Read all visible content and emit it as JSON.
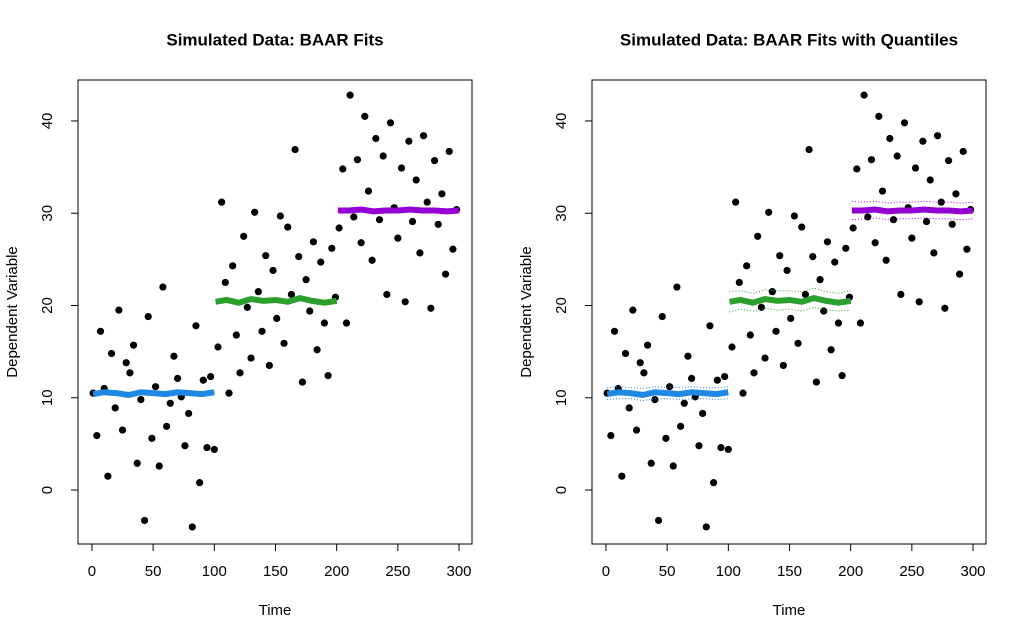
{
  "chart_data": [
    {
      "type": "scatter",
      "title": "Simulated Data: BAAR Fits",
      "x_label": "Time",
      "y_label": "Dependent Variable",
      "xlim": [
        -11.4,
        310.6
      ],
      "ylim": [
        -5.85,
        44.44
      ],
      "xticks": [
        0,
        50,
        100,
        150,
        200,
        250,
        300
      ],
      "yticks": [
        0,
        10,
        20,
        30,
        40
      ],
      "point_color": "#000000",
      "x": [
        1,
        4,
        7,
        10,
        13,
        16,
        19,
        22,
        25,
        28,
        31,
        34,
        37,
        40,
        43,
        46,
        49,
        52,
        55,
        58,
        61,
        64,
        67,
        70,
        73,
        76,
        79,
        82,
        85,
        88,
        91,
        94,
        97,
        100,
        103,
        106,
        109,
        112,
        115,
        118,
        121,
        124,
        127,
        130,
        133,
        136,
        139,
        142,
        145,
        148,
        151,
        154,
        157,
        160,
        163,
        166,
        169,
        172,
        175,
        178,
        181,
        184,
        187,
        190,
        193,
        196,
        199,
        202,
        205,
        208,
        211,
        214,
        217,
        220,
        223,
        226,
        229,
        232,
        235,
        238,
        241,
        244,
        247,
        250,
        253,
        256,
        259,
        262,
        265,
        268,
        271,
        274,
        277,
        280,
        283,
        286,
        289,
        292,
        295,
        298
      ],
      "values": [
        10.5,
        5.9,
        17.2,
        11,
        1.5,
        14.8,
        8.9,
        19.5,
        6.5,
        13.8,
        12.7,
        15.7,
        2.9,
        9.8,
        -3.3,
        18.8,
        5.6,
        11.2,
        2.6,
        22,
        6.9,
        9.4,
        14.5,
        12.1,
        10.1,
        4.8,
        8.3,
        -4,
        17.8,
        0.8,
        11.9,
        4.6,
        12.3,
        4.4,
        15.5,
        31.2,
        22.5,
        10.5,
        24.3,
        16.8,
        12.7,
        27.5,
        19.8,
        14.3,
        30.1,
        21.5,
        17.2,
        25.4,
        13.5,
        23.8,
        18.6,
        29.7,
        15.9,
        28.5,
        21.2,
        36.9,
        25.3,
        11.7,
        22.8,
        19.4,
        26.9,
        15.2,
        24.7,
        18.1,
        12.4,
        26.2,
        20.9,
        28.4,
        34.8,
        18.1,
        42.8,
        29.6,
        35.8,
        26.8,
        40.5,
        32.4,
        24.9,
        38.1,
        29.3,
        36.2,
        21.2,
        39.8,
        30.6,
        27.3,
        34.9,
        20.4,
        37.8,
        29.1,
        33.6,
        25.7,
        38.4,
        31.2,
        19.7,
        35.7,
        28.8,
        32.1,
        23.4,
        36.7,
        26.1,
        30.4
      ],
      "fits": [
        {
          "color": "#1e88e5",
          "x": [
            1,
            10,
            20,
            30,
            40,
            50,
            60,
            70,
            80,
            90,
            100
          ],
          "values": [
            10.4,
            10.6,
            10.5,
            10.3,
            10.6,
            10.5,
            10.4,
            10.6,
            10.5,
            10.4,
            10.6
          ]
        },
        {
          "color": "#2ca02c",
          "x": [
            101,
            110,
            120,
            130,
            140,
            150,
            160,
            170,
            180,
            190,
            200
          ],
          "values": [
            20.4,
            20.6,
            20.3,
            20.7,
            20.5,
            20.6,
            20.4,
            20.8,
            20.5,
            20.3,
            20.5
          ]
        },
        {
          "color": "#9400d3",
          "x": [
            201,
            210,
            220,
            230,
            240,
            250,
            260,
            270,
            280,
            290,
            300
          ],
          "values": [
            30.3,
            30.3,
            30.4,
            30.2,
            30.3,
            30.3,
            30.4,
            30.3,
            30.3,
            30.2,
            30.3
          ]
        }
      ]
    },
    {
      "type": "scatter",
      "title": "Simulated Data: BAAR Fits with Quantiles",
      "x_label": "Time",
      "y_label": "Dependent Variable",
      "xlim": [
        -11.4,
        310.6
      ],
      "ylim": [
        -5.85,
        44.44
      ],
      "xticks": [
        0,
        50,
        100,
        150,
        200,
        250,
        300
      ],
      "yticks": [
        0,
        10,
        20,
        30,
        40
      ],
      "point_color": "#000000",
      "x": [
        1,
        4,
        7,
        10,
        13,
        16,
        19,
        22,
        25,
        28,
        31,
        34,
        37,
        40,
        43,
        46,
        49,
        52,
        55,
        58,
        61,
        64,
        67,
        70,
        73,
        76,
        79,
        82,
        85,
        88,
        91,
        94,
        97,
        100,
        103,
        106,
        109,
        112,
        115,
        118,
        121,
        124,
        127,
        130,
        133,
        136,
        139,
        142,
        145,
        148,
        151,
        154,
        157,
        160,
        163,
        166,
        169,
        172,
        175,
        178,
        181,
        184,
        187,
        190,
        193,
        196,
        199,
        202,
        205,
        208,
        211,
        214,
        217,
        220,
        223,
        226,
        229,
        232,
        235,
        238,
        241,
        244,
        247,
        250,
        253,
        256,
        259,
        262,
        265,
        268,
        271,
        274,
        277,
        280,
        283,
        286,
        289,
        292,
        295,
        298
      ],
      "values": [
        10.5,
        5.9,
        17.2,
        11,
        1.5,
        14.8,
        8.9,
        19.5,
        6.5,
        13.8,
        12.7,
        15.7,
        2.9,
        9.8,
        -3.3,
        18.8,
        5.6,
        11.2,
        2.6,
        22,
        6.9,
        9.4,
        14.5,
        12.1,
        10.1,
        4.8,
        8.3,
        -4,
        17.8,
        0.8,
        11.9,
        4.6,
        12.3,
        4.4,
        15.5,
        31.2,
        22.5,
        10.5,
        24.3,
        16.8,
        12.7,
        27.5,
        19.8,
        14.3,
        30.1,
        21.5,
        17.2,
        25.4,
        13.5,
        23.8,
        18.6,
        29.7,
        15.9,
        28.5,
        21.2,
        36.9,
        25.3,
        11.7,
        22.8,
        19.4,
        26.9,
        15.2,
        24.7,
        18.1,
        12.4,
        26.2,
        20.9,
        28.4,
        34.8,
        18.1,
        42.8,
        29.6,
        35.8,
        26.8,
        40.5,
        32.4,
        24.9,
        38.1,
        29.3,
        36.2,
        21.2,
        39.8,
        30.6,
        27.3,
        34.9,
        20.4,
        37.8,
        29.1,
        33.6,
        25.7,
        38.4,
        31.2,
        19.7,
        35.7,
        28.8,
        32.1,
        23.4,
        36.7,
        26.1,
        30.4
      ],
      "fits": [
        {
          "color": "#1e88e5",
          "x": [
            1,
            10,
            20,
            30,
            40,
            50,
            60,
            70,
            80,
            90,
            100
          ],
          "values": [
            10.4,
            10.6,
            10.5,
            10.3,
            10.6,
            10.5,
            10.4,
            10.6,
            10.5,
            10.4,
            10.6
          ],
          "lower": [
            9.8,
            9.9,
            9.9,
            9.7,
            9.9,
            9.9,
            9.8,
            9.9,
            9.9,
            9.8,
            9.9
          ],
          "upper": [
            11.1,
            11.2,
            11.1,
            11,
            11.2,
            11.1,
            11.1,
            11.2,
            11.1,
            11.1,
            11.2
          ]
        },
        {
          "color": "#2ca02c",
          "x": [
            101,
            110,
            120,
            130,
            140,
            150,
            160,
            170,
            180,
            190,
            200
          ],
          "values": [
            20.4,
            20.6,
            20.3,
            20.7,
            20.5,
            20.6,
            20.4,
            20.8,
            20.5,
            20.3,
            20.5
          ],
          "lower": [
            19.3,
            19.6,
            19.4,
            19.7,
            19.5,
            19.6,
            19.4,
            19.8,
            19.5,
            19.4,
            19.5
          ],
          "upper": [
            21.5,
            21.6,
            21.3,
            21.7,
            21.6,
            21.6,
            21.5,
            21.9,
            21.5,
            21.3,
            21.6
          ]
        },
        {
          "color": "#9400d3",
          "x": [
            201,
            210,
            220,
            230,
            240,
            250,
            260,
            270,
            280,
            290,
            300
          ],
          "values": [
            30.3,
            30.3,
            30.4,
            30.2,
            30.3,
            30.3,
            30.4,
            30.3,
            30.3,
            30.2,
            30.3
          ],
          "lower": [
            29.3,
            29.4,
            29.5,
            29.3,
            29.4,
            29.4,
            29.5,
            29.4,
            29.4,
            29.3,
            29.4
          ],
          "upper": [
            31.3,
            31.2,
            31.3,
            31.1,
            31.2,
            31.2,
            31.3,
            31.2,
            31.2,
            31.1,
            31.2
          ]
        }
      ]
    }
  ]
}
